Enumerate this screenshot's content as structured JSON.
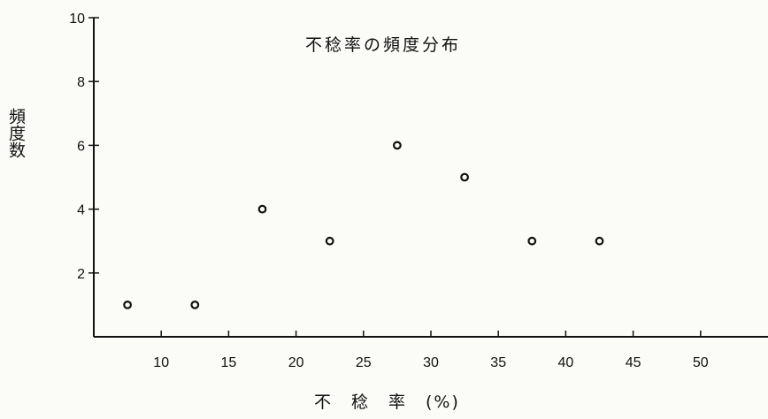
{
  "chart_data": {
    "type": "scatter",
    "title": "不稔率の頻度分布",
    "xlabel": "不　稔　率　(%)",
    "ylabel": "頻度数",
    "x": [
      7.5,
      12.5,
      17.5,
      22.5,
      27.5,
      32.5,
      37.5,
      42.5
    ],
    "y": [
      1,
      1,
      4,
      3,
      6,
      5,
      3,
      3
    ],
    "xticks": [
      10,
      15,
      20,
      25,
      30,
      35,
      40,
      45,
      50
    ],
    "yticks": [
      2,
      4,
      6,
      8,
      10
    ],
    "xlim": [
      5,
      55
    ],
    "ylim": [
      0,
      10
    ],
    "grid": false,
    "marker": "open-circle"
  }
}
